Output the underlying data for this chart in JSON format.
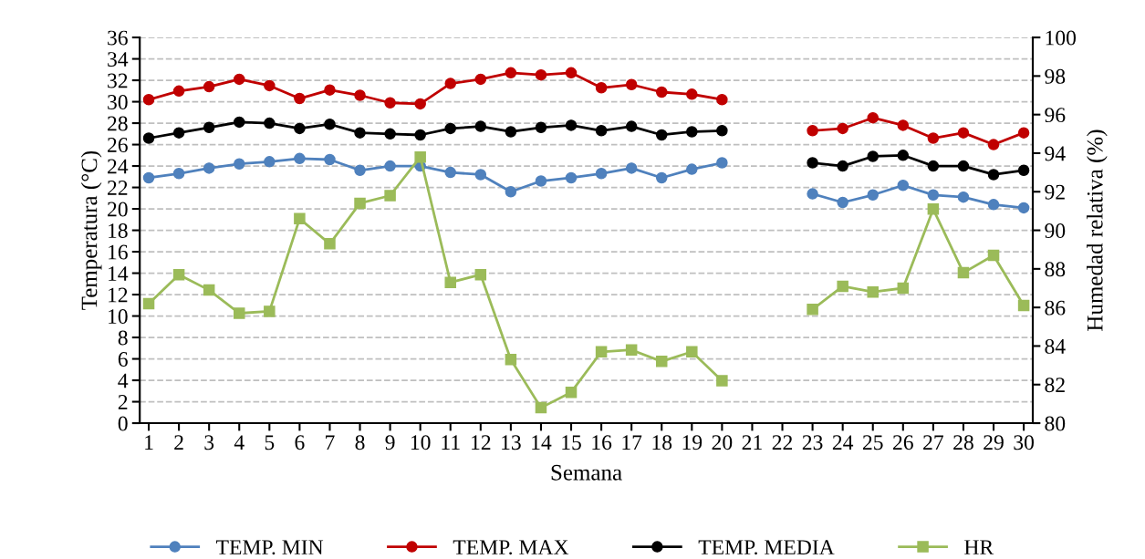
{
  "chart_data": {
    "type": "line",
    "xlabel": "Semana",
    "ylabel": "Temperatura (°C)",
    "y2label": "Humedad relativa (%)",
    "categories": [
      "1",
      "2",
      "3",
      "4",
      "5",
      "6",
      "7",
      "8",
      "9",
      "10",
      "11",
      "12",
      "13",
      "14",
      "15",
      "16",
      "17",
      "18",
      "19",
      "20",
      "21",
      "22",
      "23",
      "24",
      "25",
      "26",
      "27",
      "28",
      "29",
      "30"
    ],
    "series": [
      {
        "name": "TEMP. MIN",
        "color": "#4f81bd",
        "marker": "circle",
        "values": [
          22.9,
          23.3,
          23.8,
          24.2,
          24.4,
          24.7,
          24.6,
          23.6,
          24.0,
          24.0,
          23.4,
          23.2,
          21.6,
          22.6,
          22.9,
          23.3,
          23.8,
          22.9,
          23.7,
          24.3,
          null,
          null,
          21.4,
          20.6,
          21.3,
          22.2,
          21.3,
          21.1,
          20.4,
          20.1
        ]
      },
      {
        "name": "TEMP. MAX",
        "color": "#c00000",
        "marker": "circle",
        "values": [
          30.2,
          31.0,
          31.4,
          32.1,
          31.5,
          30.3,
          31.1,
          30.6,
          29.9,
          29.8,
          31.7,
          32.1,
          32.7,
          32.5,
          32.7,
          31.3,
          31.6,
          30.9,
          30.7,
          30.2,
          null,
          null,
          27.3,
          27.5,
          28.5,
          27.8,
          26.6,
          27.1,
          26.0,
          27.1
        ]
      },
      {
        "name": "TEMP. MEDIA",
        "color": "#000000",
        "marker": "circle",
        "values": [
          26.6,
          27.1,
          27.6,
          28.1,
          28.0,
          27.5,
          27.9,
          27.1,
          27.0,
          26.9,
          27.5,
          27.7,
          27.2,
          27.6,
          27.8,
          27.3,
          27.7,
          26.9,
          27.2,
          27.3,
          null,
          null,
          24.3,
          24.0,
          24.9,
          25.0,
          24.0,
          24.0,
          23.2,
          23.6
        ]
      },
      {
        "name": "HR",
        "color": "#9bbb59",
        "marker": "square",
        "axis": "y2",
        "values": [
          86.2,
          87.7,
          86.9,
          85.7,
          85.8,
          90.6,
          89.3,
          91.4,
          91.8,
          93.8,
          87.3,
          87.7,
          83.3,
          80.8,
          81.6,
          83.7,
          83.8,
          83.2,
          83.7,
          82.2,
          null,
          null,
          85.9,
          87.1,
          86.8,
          87.0,
          91.1,
          87.8,
          88.7,
          86.1
        ]
      }
    ],
    "ylim": [
      0,
      36
    ],
    "yticks": [
      0,
      2,
      4,
      6,
      8,
      10,
      12,
      14,
      16,
      18,
      20,
      22,
      24,
      26,
      28,
      30,
      32,
      34,
      36
    ],
    "y2lim": [
      80,
      100
    ],
    "y2ticks": [
      80,
      82,
      84,
      86,
      88,
      90,
      92,
      94,
      96,
      98,
      100
    ],
    "grid": "y",
    "legend": "bottom",
    "line_style": "solid"
  }
}
